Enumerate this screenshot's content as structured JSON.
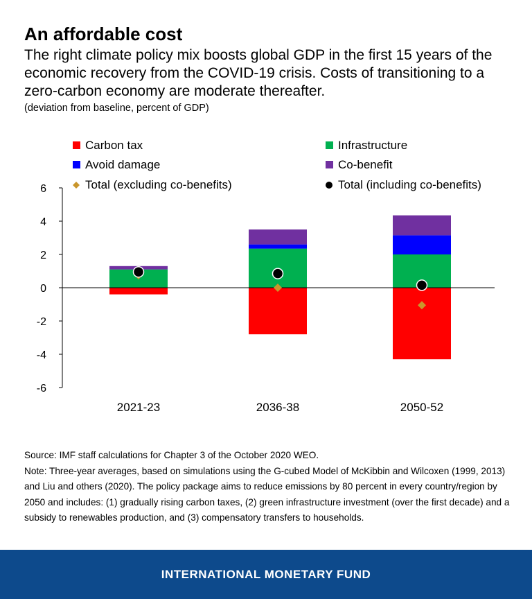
{
  "header": {
    "title": "An affordable cost",
    "subtitle": "The right climate policy mix boosts global GDP in the first 15 years of the economic recovery from the COVID-19 crisis. Costs of transitioning to a zero-carbon economy are moderate thereafter.",
    "units": "(deviation from baseline, percent of GDP)"
  },
  "chart_data": {
    "type": "bar",
    "stacked": true,
    "categories": [
      "2021-23",
      "2036-38",
      "2050-52"
    ],
    "ylim": [
      -6,
      6
    ],
    "yticks": [
      6,
      4,
      2,
      0,
      -2,
      -4,
      -6
    ],
    "tick_labels": [
      "6",
      "4",
      "2",
      "0",
      "-2",
      "-4",
      "-6"
    ],
    "grid": false,
    "legend_position": "top",
    "series": [
      {
        "name": "Carbon tax",
        "color": "#ff0000",
        "values": [
          -0.4,
          -2.8,
          -4.3
        ]
      },
      {
        "name": "Infrastructure",
        "color": "#00b050",
        "values": [
          1.1,
          2.35,
          2.0
        ]
      },
      {
        "name": "Avoid damage",
        "color": "#0000ff",
        "values": [
          0.0,
          0.25,
          1.15
        ]
      },
      {
        "name": "Co-benefit",
        "color": "#7030a0",
        "values": [
          0.2,
          0.9,
          1.2
        ]
      }
    ],
    "markers": [
      {
        "name": "Total (excluding co-benefits)",
        "shape": "diamond",
        "color": "#c9962c",
        "values": [
          0.75,
          0.0,
          -1.05
        ]
      },
      {
        "name": "Total (including co-benefits)",
        "shape": "circle",
        "color": "#000000",
        "values": [
          0.95,
          0.85,
          0.15
        ]
      }
    ]
  },
  "notes": {
    "source": "Source: IMF staff calculations for Chapter 3 of the October 2020 WEO.",
    "note": "Note: Three-year averages, based on simulations using the G-cubed Model of McKibbin and Wilcoxen (1999, 2013) and Liu and others (2020). The policy package aims to reduce emissions by 80 percent in every country/region by 2050 and includes: (1) gradually rising carbon taxes, (2) green infrastructure investment (over the first decade) and a subsidy to renewables production, and (3) compensatory transfers to households."
  },
  "footer": {
    "org": "INTERNATIONAL MONETARY FUND"
  }
}
